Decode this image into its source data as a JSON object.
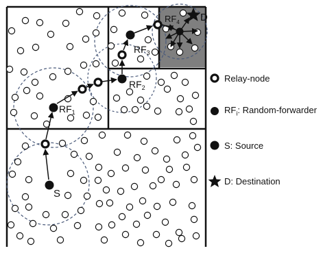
{
  "labels": {
    "source": "S",
    "rf1": "RF",
    "rf1_sub": "1",
    "rf2": "RF",
    "rf2_sub": "2",
    "rf3": "RF",
    "rf3_sub": "3",
    "rf4": "RF",
    "rf4_sub": "4",
    "destination": "D"
  },
  "legend": {
    "relay": "Relay-node",
    "rf_prefix": "RF",
    "rf_sub": "i",
    "rf_suffix": ": Random-forwarder",
    "source": "S: Source",
    "destination": "D: Destination"
  },
  "colors": {
    "border": "#111111",
    "dashed_circle": "#4a5a7a",
    "destination_cell": "#7f7f7f"
  }
}
